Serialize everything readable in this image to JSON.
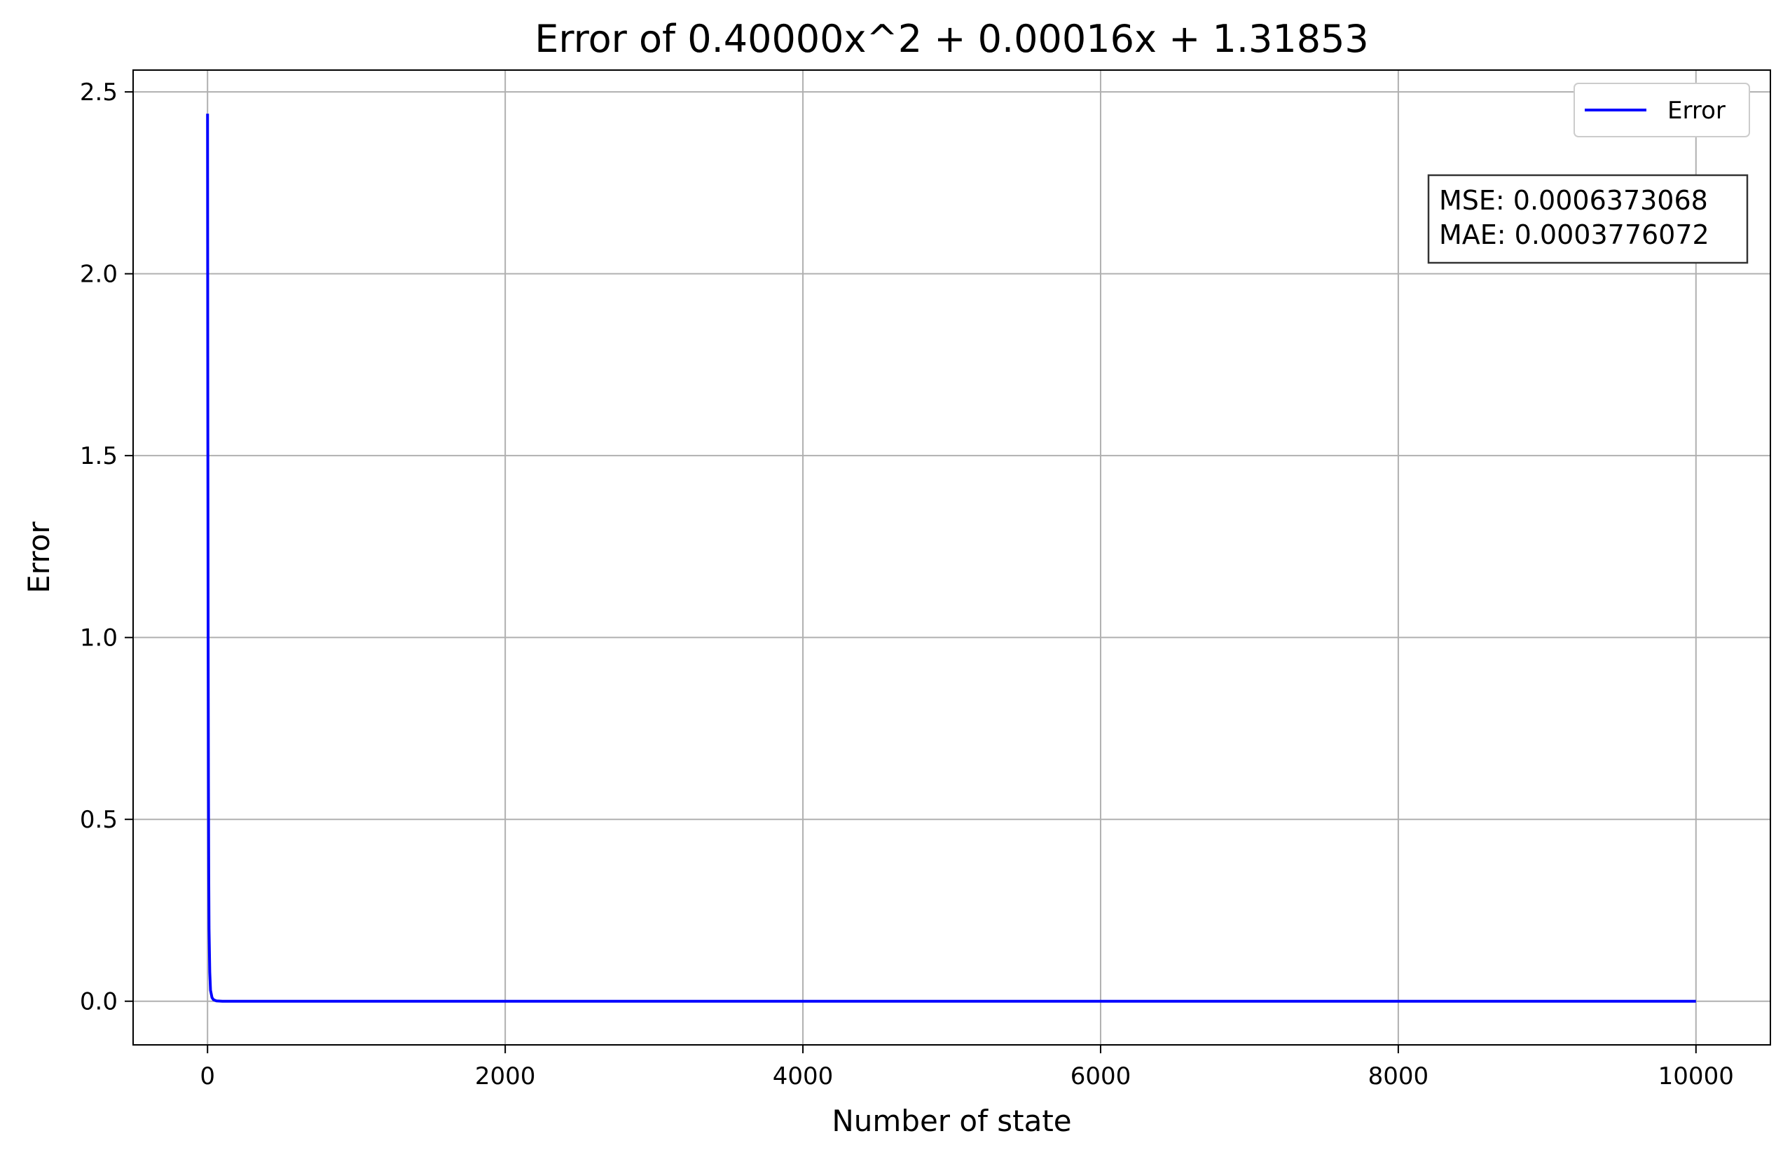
{
  "chart_data": {
    "type": "line",
    "title": "Error of 0.40000x^2 + 0.00016x + 1.31853",
    "xlabel": "Number of state",
    "ylabel": "Error",
    "xlim": [
      -500,
      10500
    ],
    "ylim": [
      -0.12,
      2.56
    ],
    "xticks": [
      0,
      2000,
      4000,
      6000,
      8000,
      10000
    ],
    "xtick_labels": [
      "0",
      "2000",
      "4000",
      "6000",
      "8000",
      "10000"
    ],
    "yticks": [
      0.0,
      0.5,
      1.0,
      1.5,
      2.0,
      2.5
    ],
    "ytick_labels": [
      "0.0",
      "0.5",
      "1.0",
      "1.5",
      "2.0",
      "2.5"
    ],
    "grid": true,
    "legend_position": "top-right",
    "series": [
      {
        "name": "Error",
        "color": "#0000ff",
        "x": [
          0,
          2,
          4,
          6,
          8,
          10,
          15,
          20,
          30,
          40,
          60,
          100,
          1000,
          2000,
          4000,
          6000,
          8000,
          10000
        ],
        "y": [
          2.44,
          1.6,
          1.0,
          0.6,
          0.35,
          0.2,
          0.08,
          0.03,
          0.01,
          0.004,
          0.001,
          0.0,
          0.0,
          0.0,
          0.0,
          0.0,
          0.0,
          0.0
        ]
      }
    ],
    "annotation": {
      "lines": [
        "MSE: 0.0006373068",
        "MAE: 0.0003776072"
      ],
      "position": "top-right"
    }
  }
}
